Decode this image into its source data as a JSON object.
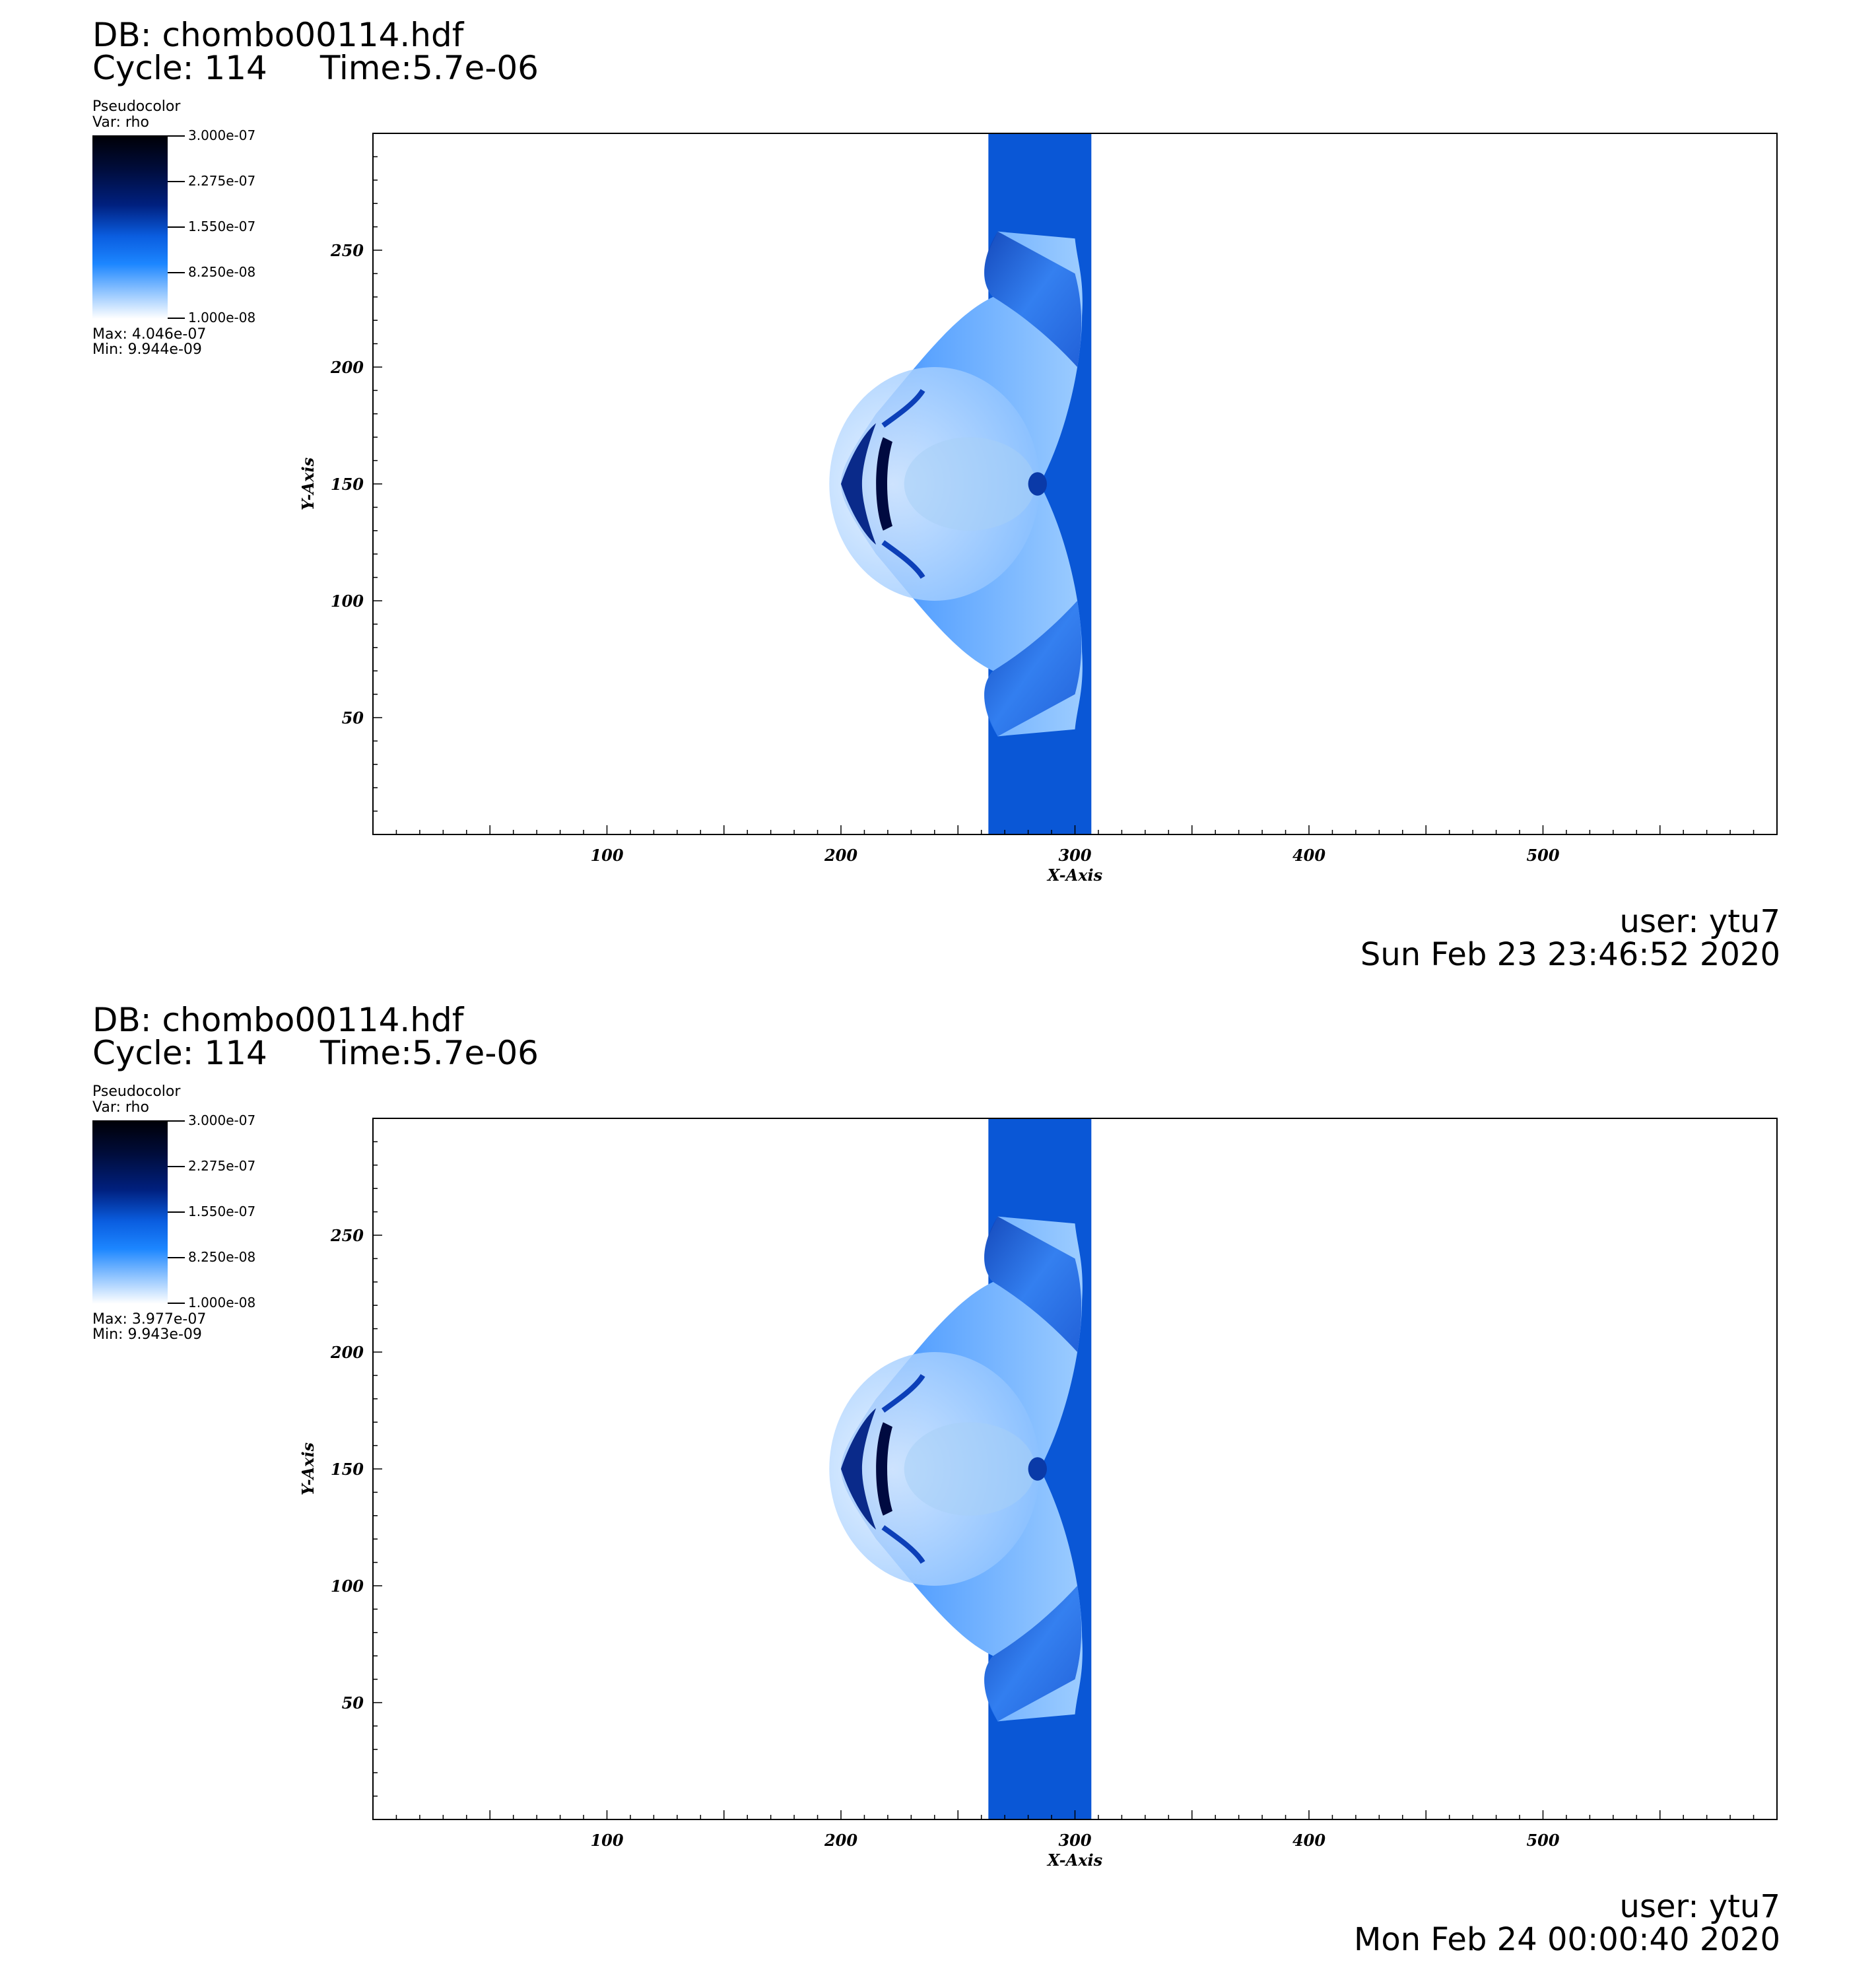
{
  "panels": [
    {
      "db": "DB: chombo00114.hdf",
      "cycle": "Cycle: 114",
      "time": "Time:5.7e-06",
      "legend": {
        "title": "Pseudocolor",
        "var": "Var: rho",
        "ticks": [
          "3.000e-07",
          "2.275e-07",
          "1.550e-07",
          "8.250e-08",
          "1.000e-08"
        ],
        "max": "Max:  4.046e-07",
        "min": "Min:  9.944e-09"
      },
      "user": "user: ytu7",
      "date": "Sun Feb 23 23:46:52 2020"
    },
    {
      "db": "DB: chombo00114.hdf",
      "cycle": "Cycle: 114",
      "time": "Time:5.7e-06",
      "legend": {
        "title": "Pseudocolor",
        "var": "Var: rho",
        "ticks": [
          "3.000e-07",
          "2.275e-07",
          "1.550e-07",
          "8.250e-08",
          "1.000e-08"
        ],
        "max": "Max:  3.977e-07",
        "min": "Min:  9.943e-09"
      },
      "user": "user: ytu7",
      "date": "Mon Feb 24 00:00:40 2020"
    }
  ],
  "chart_data": [
    {
      "type": "heatmap",
      "xlabel": "X-Axis",
      "ylabel": "Y-Axis",
      "xlim": [
        0,
        600
      ],
      "ylim": [
        0,
        300
      ],
      "xticks": [
        100,
        200,
        300,
        400,
        500
      ],
      "yticks": [
        50,
        100,
        150,
        200,
        250
      ],
      "colorbar": {
        "variable": "rho",
        "range": [
          1e-08,
          3e-07
        ],
        "ticks": [
          3e-07,
          2.275e-07,
          1.55e-07,
          8.25e-08,
          1e-08
        ]
      },
      "max": 4.046e-07,
      "min": 9.944e-09
    },
    {
      "type": "heatmap",
      "xlabel": "X-Axis",
      "ylabel": "Y-Axis",
      "xlim": [
        0,
        600
      ],
      "ylim": [
        0,
        300
      ],
      "xticks": [
        100,
        200,
        300,
        400,
        500
      ],
      "yticks": [
        50,
        100,
        150,
        200,
        250
      ],
      "colorbar": {
        "variable": "rho",
        "range": [
          1e-08,
          3e-07
        ],
        "ticks": [
          3e-07,
          2.275e-07,
          1.55e-07,
          8.25e-08,
          1e-08
        ]
      },
      "max": 3.977e-07,
      "min": 9.943e-09
    }
  ],
  "colors": {
    "band": "#0a57d6",
    "band_dark": "#0a3fb0",
    "shell": "#2f7df0",
    "light": "#a8d2ff",
    "dark": "#000a40"
  }
}
